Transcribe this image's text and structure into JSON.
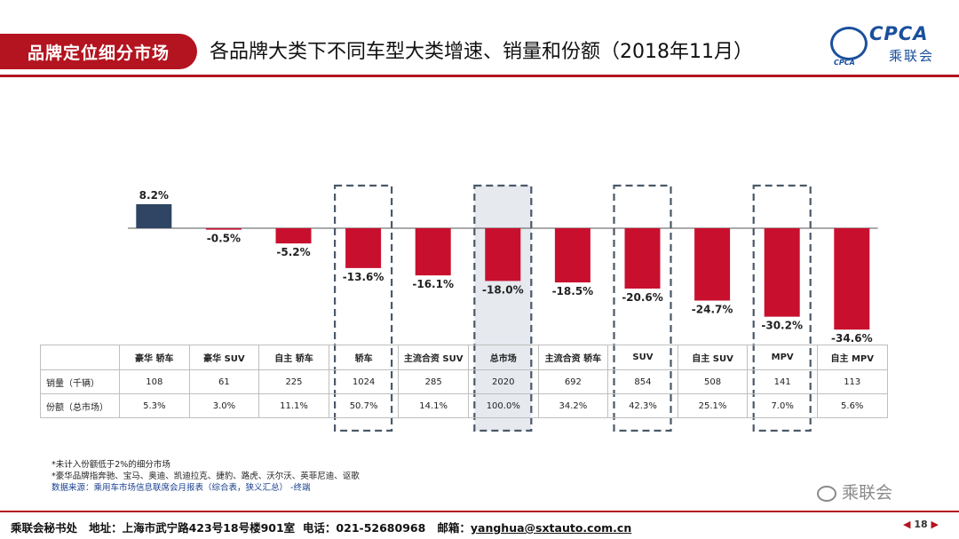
{
  "header": {
    "tag": "品牌定位细分市场",
    "title": "各品牌大类下不同车型大类增速、销量和份额（2018年11月）"
  },
  "logo": {
    "text": "CPCA",
    "text_cn": "乘联会",
    "disc_text": "CPCA"
  },
  "chart_data": {
    "type": "bar",
    "categories": [
      "豪华 轿车",
      "豪华 SUV",
      "自主 轿车",
      "轿车",
      "主流合资 SUV",
      "总市场",
      "主流合资 轿车",
      "SUV",
      "自主 SUV",
      "MPV",
      "自主 MPV"
    ],
    "values": [
      8.2,
      -0.5,
      -5.2,
      -13.6,
      -16.1,
      -18.0,
      -18.5,
      -20.6,
      -24.7,
      -30.2,
      -34.6
    ],
    "value_labels": [
      "8.2%",
      "-0.5%",
      "-5.2%",
      "-13.6%",
      "-16.1%",
      "-18.0%",
      "-18.5%",
      "-20.6%",
      "-24.7%",
      "-30.2%",
      "-34.6%"
    ],
    "highlight_boxes": [
      3,
      5,
      7,
      9
    ],
    "highlight_fill": [
      5
    ],
    "colors": {
      "positive": "#2f4563",
      "negative": "#c8102e",
      "box": "#4a5968",
      "fill": "#e6e9ee"
    },
    "ylim": [
      -36,
      10
    ],
    "title": "",
    "xlabel": "",
    "ylabel": ""
  },
  "table": {
    "rows": [
      {
        "label": "销量（千辆）",
        "values": [
          "108",
          "61",
          "225",
          "1024",
          "285",
          "2020",
          "692",
          "854",
          "508",
          "141",
          "113"
        ]
      },
      {
        "label": "份额（总市场）",
        "values": [
          "5.3%",
          "3.0%",
          "11.1%",
          "50.7%",
          "14.1%",
          "100.0%",
          "34.2%",
          "42.3%",
          "25.1%",
          "7.0%",
          "5.6%"
        ]
      }
    ]
  },
  "notes": [
    "*未计入份额低于2%的细分市场",
    "*豪华品牌指奔驰、宝马、奥迪、凯迪拉克、捷豹、路虎、沃尔沃、英菲尼迪、讴歌"
  ],
  "source_note": "数据来源：乘用车市场信息联席会月报表（综合表，狭义汇总） -终端",
  "watermark": "乘联会",
  "footer": {
    "org": "乘联会秘书处",
    "address_label": "地址：",
    "address": "上海市武宁路423号18号楼901室",
    "phone_label": "电话：",
    "phone": "021-52680968",
    "email_label": "邮箱：",
    "email": "yanghua@sxtauto.com.cn"
  },
  "page": {
    "number": "18"
  }
}
